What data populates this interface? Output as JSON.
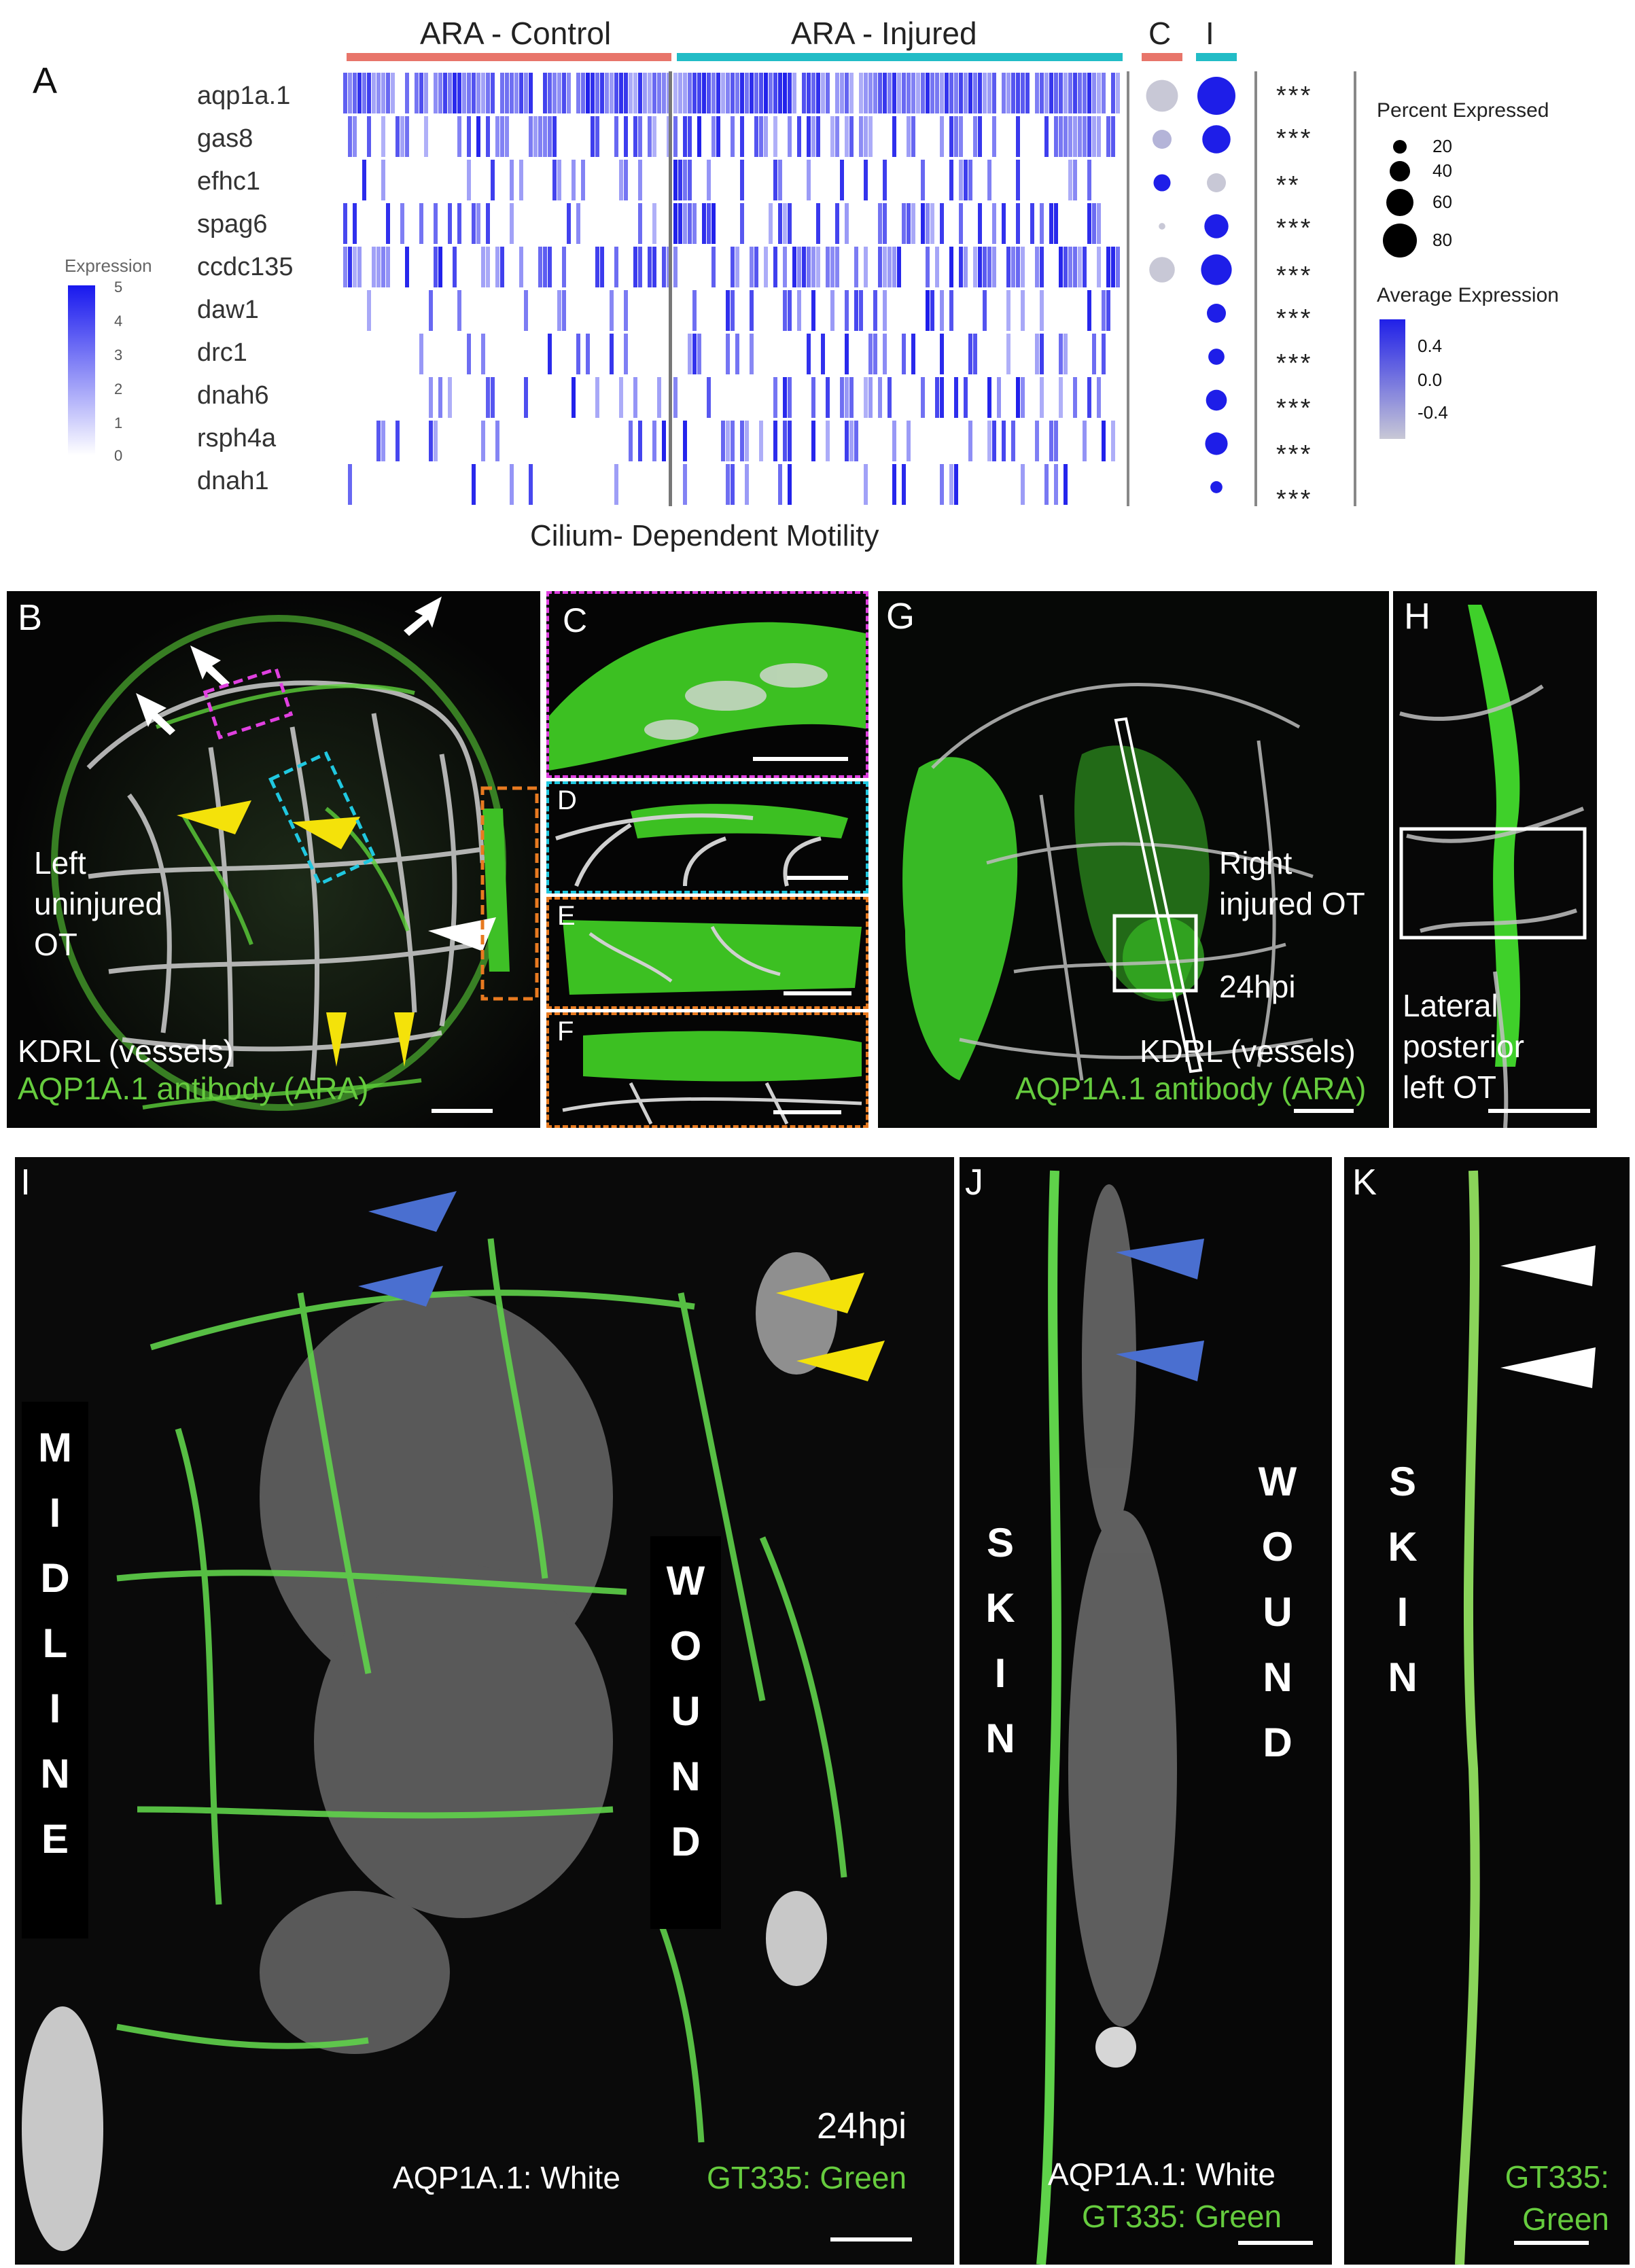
{
  "panel_a": {
    "letter": "A",
    "group_labels": {
      "control": "ARA - Control",
      "injured": "ARA - Injured",
      "c": "C",
      "i": "I"
    },
    "colors": {
      "control": "#e8756a",
      "injured": "#22bcc6",
      "high": "#1818ee",
      "low": "#ffffff"
    },
    "genes": [
      "aqp1a.1",
      "gas8",
      "efhc1",
      "spag6",
      "ccdc135",
      "daw1",
      "drc1",
      "dnah6",
      "rsph4a",
      "dnah1"
    ],
    "significance": [
      "***",
      "***",
      "**",
      "***",
      "***",
      "***",
      "***",
      "***",
      "***",
      "***"
    ],
    "heatmap_legend": {
      "title": "Expression",
      "ticks": [
        "5",
        "4",
        "3",
        "2",
        "1",
        "0"
      ]
    },
    "dot_legend": {
      "title": "Percent Expressed",
      "ticks": [
        "20",
        "40",
        "60",
        "80"
      ]
    },
    "avg_legend": {
      "title": "Average Expression",
      "ticks": [
        "0.4",
        "0.0",
        "-0.4"
      ]
    },
    "caption": "Cilium- Dependent Motility",
    "dots": {
      "C": [
        {
          "pct": 70,
          "avg": -0.4
        },
        {
          "pct": 25,
          "avg": -0.3
        },
        {
          "pct": 20,
          "avg": 0.45
        },
        {
          "pct": 3,
          "avg": -0.4
        },
        {
          "pct": 45,
          "avg": -0.4
        },
        {
          "pct": 0,
          "avg": 0
        },
        {
          "pct": 0,
          "avg": 0
        },
        {
          "pct": 0,
          "avg": 0
        },
        {
          "pct": 0,
          "avg": 0
        },
        {
          "pct": 0,
          "avg": 0
        }
      ],
      "I": [
        {
          "pct": 100,
          "avg": 0.45
        },
        {
          "pct": 55,
          "avg": 0.45
        },
        {
          "pct": 25,
          "avg": -0.4
        },
        {
          "pct": 40,
          "avg": 0.45
        },
        {
          "pct": 65,
          "avg": 0.45
        },
        {
          "pct": 25,
          "avg": 0.45
        },
        {
          "pct": 18,
          "avg": 0.45
        },
        {
          "pct": 30,
          "avg": 0.45
        },
        {
          "pct": 35,
          "avg": 0.45
        },
        {
          "pct": 10,
          "avg": 0.45
        }
      ]
    }
  },
  "panel_b": {
    "letter": "B",
    "label_left": "Left uninjured OT",
    "label_kdrl": "KDRL (vessels)",
    "label_aqp": "AQP1A.1 antibody (ARA)"
  },
  "panel_c": {
    "letter": "C"
  },
  "panel_d": {
    "letter": "D"
  },
  "panel_e": {
    "letter": "E"
  },
  "panel_f": {
    "letter": "F"
  },
  "panel_g": {
    "letter": "G",
    "label_right": "Right injured OT",
    "label_time": "24hpi",
    "label_kdrl": "KDRL (vessels)",
    "label_aqp": "AQP1A.1 antibody (ARA)"
  },
  "panel_h": {
    "letter": "H",
    "label": "Lateral posterior left OT"
  },
  "panel_i": {
    "letter": "I",
    "midline": [
      "M",
      "I",
      "D",
      "L",
      "I",
      "N",
      "E"
    ],
    "wound": [
      "W",
      "O",
      "U",
      "N",
      "D"
    ],
    "time": "24hpi",
    "label_white": "AQP1A.1: White",
    "label_green": "GT335: Green"
  },
  "panel_j": {
    "letter": "J",
    "skin": [
      "S",
      "K",
      "I",
      "N"
    ],
    "wound": [
      "W",
      "O",
      "U",
      "N",
      "D"
    ],
    "label_white": "AQP1A.1: White",
    "label_green": "GT335: Green"
  },
  "panel_k": {
    "letter": "K",
    "skin": [
      "S",
      "K",
      "I",
      "N"
    ],
    "label_green": "GT335: Green"
  }
}
